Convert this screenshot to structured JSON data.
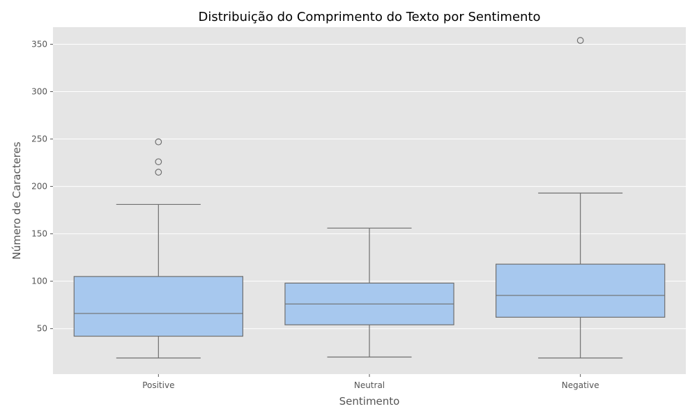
{
  "chart_data": {
    "type": "box",
    "title": "Distribuição do Comprimento do Texto por Sentimento",
    "xlabel": "Sentimento",
    "ylabel": "Número de Caracteres",
    "ylim": [
      2,
      368
    ],
    "yticks": [
      50,
      100,
      150,
      200,
      250,
      300,
      350
    ],
    "grid": true,
    "colors": {
      "box_fill": "#a7c8ee",
      "box_line": "#6f6f6f",
      "plot_bg": "#e5e5e5",
      "grid": "#ffffff"
    },
    "categories": [
      "Positive",
      "Neutral",
      "Negative"
    ],
    "boxes": [
      {
        "category": "Positive",
        "whisker_low": 19,
        "q1": 42,
        "median": 66,
        "q3": 105,
        "whisker_high": 181,
        "outliers": [
          215,
          226,
          247
        ]
      },
      {
        "category": "Neutral",
        "whisker_low": 20,
        "q1": 54,
        "median": 76,
        "q3": 98,
        "whisker_high": 156,
        "outliers": []
      },
      {
        "category": "Negative",
        "whisker_low": 19,
        "q1": 62,
        "median": 85,
        "q3": 118,
        "whisker_high": 193,
        "outliers": [
          354
        ]
      }
    ]
  }
}
